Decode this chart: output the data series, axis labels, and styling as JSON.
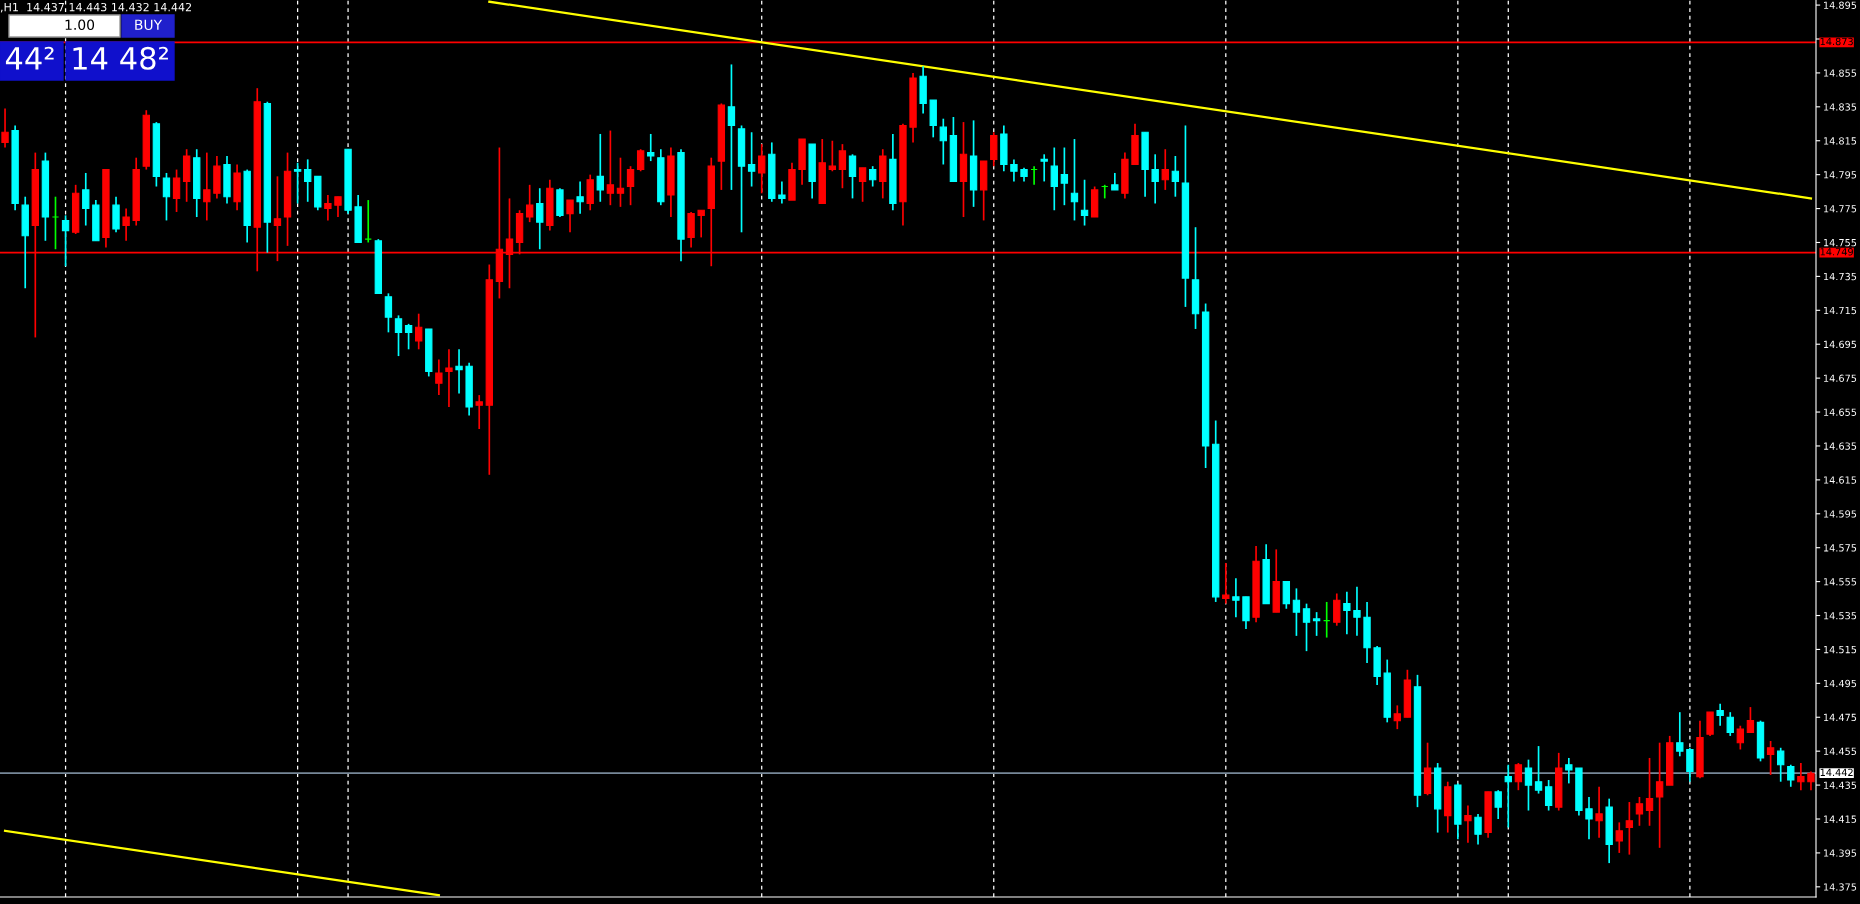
{
  "chart_data": {
    "type": "candlestick",
    "categories": [
      null,
      null,
      null,
      null,
      null,
      null,
      null,
      null,
      null,
      null,
      null,
      null,
      null,
      null,
      null,
      null,
      null,
      null,
      null,
      null,
      null,
      null,
      null,
      null,
      null,
      null,
      null,
      null,
      null,
      null,
      null,
      null,
      null,
      null,
      null,
      null,
      null,
      null,
      null,
      null,
      null,
      null,
      null,
      null,
      null,
      null,
      null,
      null,
      null,
      null,
      null,
      null,
      null,
      null,
      null,
      null,
      null,
      null,
      null,
      null,
      null,
      null,
      null,
      null,
      null,
      null,
      null,
      null,
      null,
      null,
      null,
      null,
      null,
      null,
      null,
      null,
      null,
      null,
      null,
      null,
      null,
      null,
      null,
      null,
      null,
      null,
      null,
      null,
      null,
      null,
      null,
      null,
      null,
      null,
      null,
      null,
      null,
      null,
      null,
      null,
      null,
      null,
      null,
      null,
      null,
      null,
      null,
      null,
      null,
      null,
      null,
      null,
      null,
      null,
      null,
      null,
      null,
      null,
      null,
      null,
      null,
      null,
      null,
      null,
      null,
      null,
      null,
      null,
      null,
      null,
      null,
      null,
      null,
      null,
      null,
      null,
      null,
      null,
      null,
      null,
      null,
      null,
      null,
      null,
      null,
      null,
      null,
      null,
      null,
      null,
      null,
      null,
      null,
      null,
      null,
      null,
      null,
      null,
      null,
      null,
      null,
      null,
      null,
      null,
      null,
      null,
      null,
      null,
      null,
      null,
      null,
      null,
      null,
      null,
      null,
      null,
      null,
      null,
      null,
      null
    ],
    "ohlc": [
      [
        14.814,
        14.834,
        14.811,
        14.82
      ],
      [
        14.821,
        14.824,
        14.774,
        14.778
      ],
      [
        14.777,
        14.782,
        14.728,
        14.759
      ],
      [
        14.765,
        14.808,
        14.699,
        14.798
      ],
      [
        14.803,
        14.808,
        14.756,
        14.77
      ],
      [
        14.77,
        14.782,
        14.751,
        14.77
      ],
      [
        14.768,
        14.771,
        14.741,
        14.762
      ],
      [
        14.761,
        14.789,
        14.76,
        14.784
      ],
      [
        14.786,
        14.796,
        14.765,
        14.775
      ],
      [
        14.777,
        14.78,
        14.756,
        14.756
      ],
      [
        14.758,
        14.798,
        14.752,
        14.798
      ],
      [
        14.777,
        14.782,
        14.761,
        14.763
      ],
      [
        14.765,
        14.775,
        14.756,
        14.77
      ],
      [
        14.768,
        14.805,
        14.765,
        14.798
      ],
      [
        14.8,
        14.833,
        14.798,
        14.83
      ],
      [
        14.825,
        14.826,
        14.788,
        14.794
      ],
      [
        14.793,
        14.796,
        14.768,
        14.782
      ],
      [
        14.781,
        14.798,
        14.773,
        14.793
      ],
      [
        14.791,
        14.81,
        14.779,
        14.806
      ],
      [
        14.805,
        14.81,
        14.77,
        14.781
      ],
      [
        14.779,
        14.808,
        14.768,
        14.786
      ],
      [
        14.784,
        14.806,
        14.781,
        14.8
      ],
      [
        14.801,
        14.806,
        14.778,
        14.782
      ],
      [
        14.779,
        14.801,
        14.774,
        14.796
      ],
      [
        14.797,
        14.798,
        14.755,
        14.765
      ],
      [
        14.764,
        14.846,
        14.738,
        14.838
      ],
      [
        14.837,
        14.838,
        14.749,
        14.767
      ],
      [
        14.765,
        14.794,
        14.744,
        14.769
      ],
      [
        14.77,
        14.808,
        14.753,
        14.797
      ],
      [
        14.798,
        14.802,
        14.778,
        14.797
      ],
      [
        14.798,
        14.804,
        14.779,
        14.791
      ],
      [
        14.794,
        14.794,
        14.774,
        14.776
      ],
      [
        14.775,
        14.783,
        14.768,
        14.778
      ],
      [
        14.777,
        14.782,
        14.77,
        14.782
      ],
      [
        14.81,
        14.81,
        14.772,
        14.774
      ],
      [
        14.776,
        14.783,
        14.755,
        14.755
      ],
      [
        14.757,
        14.78,
        14.755,
        14.757
      ],
      [
        14.756,
        14.757,
        14.725,
        14.725
      ],
      [
        14.723,
        14.725,
        14.702,
        14.711
      ],
      [
        14.71,
        14.712,
        14.688,
        14.702
      ],
      [
        14.706,
        14.707,
        14.692,
        14.702
      ],
      [
        14.697,
        14.713,
        14.692,
        14.705
      ],
      [
        14.704,
        14.704,
        14.676,
        14.679
      ],
      [
        14.672,
        14.686,
        14.665,
        14.678
      ],
      [
        14.679,
        14.692,
        14.658,
        14.681
      ],
      [
        14.682,
        14.692,
        14.666,
        14.68
      ],
      [
        14.682,
        14.684,
        14.653,
        14.658
      ],
      [
        14.659,
        14.665,
        14.645,
        14.661
      ],
      [
        14.659,
        14.742,
        14.618,
        14.733
      ],
      [
        14.732,
        14.811,
        14.722,
        14.751
      ],
      [
        14.748,
        14.781,
        14.728,
        14.757
      ],
      [
        14.755,
        14.774,
        14.748,
        14.772
      ],
      [
        14.77,
        14.789,
        14.767,
        14.777
      ],
      [
        14.778,
        14.787,
        14.751,
        14.767
      ],
      [
        14.765,
        14.792,
        14.762,
        14.787
      ],
      [
        14.786,
        14.787,
        14.77,
        14.771
      ],
      [
        14.772,
        14.78,
        14.761,
        14.78
      ],
      [
        14.782,
        14.791,
        14.772,
        14.779
      ],
      [
        14.778,
        14.795,
        14.774,
        14.792
      ],
      [
        14.794,
        14.819,
        14.779,
        14.786
      ],
      [
        14.784,
        14.821,
        14.777,
        14.789
      ],
      [
        14.784,
        14.805,
        14.776,
        14.787
      ],
      [
        14.788,
        14.8,
        14.777,
        14.798
      ],
      [
        14.798,
        14.81,
        14.797,
        14.809
      ],
      [
        14.808,
        14.819,
        14.803,
        14.806
      ],
      [
        14.805,
        14.81,
        14.777,
        14.779
      ],
      [
        14.783,
        14.811,
        14.77,
        14.806
      ],
      [
        14.808,
        14.81,
        14.744,
        14.757
      ],
      [
        14.758,
        14.773,
        14.752,
        14.772
      ],
      [
        14.771,
        14.774,
        14.758,
        14.774
      ],
      [
        14.775,
        14.805,
        14.741,
        14.8
      ],
      [
        14.803,
        14.837,
        14.786,
        14.836
      ],
      [
        14.835,
        14.86,
        14.786,
        14.824
      ],
      [
        14.822,
        14.824,
        14.761,
        14.8
      ],
      [
        14.801,
        14.82,
        14.788,
        14.797
      ],
      [
        14.796,
        14.813,
        14.784,
        14.806
      ],
      [
        14.807,
        14.814,
        14.779,
        14.781
      ],
      [
        14.783,
        14.791,
        14.778,
        14.781
      ],
      [
        14.78,
        14.802,
        14.78,
        14.798
      ],
      [
        14.798,
        14.816,
        14.789,
        14.816
      ],
      [
        14.813,
        14.813,
        14.781,
        14.791
      ],
      [
        14.778,
        14.816,
        14.778,
        14.802
      ],
      [
        14.798,
        14.815,
        14.797,
        14.8
      ],
      [
        14.798,
        14.813,
        14.787,
        14.809
      ],
      [
        14.806,
        14.807,
        14.781,
        14.794
      ],
      [
        14.791,
        14.799,
        14.779,
        14.799
      ],
      [
        14.798,
        14.8,
        14.788,
        14.792
      ],
      [
        14.791,
        14.81,
        14.781,
        14.806
      ],
      [
        14.804,
        14.819,
        14.774,
        14.778
      ],
      [
        14.779,
        14.825,
        14.765,
        14.824
      ],
      [
        14.823,
        14.855,
        14.814,
        14.852
      ],
      [
        14.853,
        14.859,
        14.831,
        14.837
      ],
      [
        14.839,
        14.839,
        14.817,
        14.824
      ],
      [
        14.823,
        14.828,
        14.801,
        14.815
      ],
      [
        14.818,
        14.829,
        14.791,
        14.791
      ],
      [
        14.791,
        14.826,
        14.77,
        14.807
      ],
      [
        14.806,
        14.827,
        14.776,
        14.786
      ],
      [
        14.786,
        14.803,
        14.768,
        14.803
      ],
      [
        14.804,
        14.82,
        14.8,
        14.818
      ],
      [
        14.819,
        14.824,
        14.797,
        14.801
      ],
      [
        14.801,
        14.804,
        14.791,
        14.797
      ],
      [
        14.798,
        14.799,
        14.791,
        14.794
      ],
      [
        14.798,
        14.8,
        14.789,
        14.798
      ],
      [
        14.804,
        14.807,
        14.791,
        14.803
      ],
      [
        14.8,
        14.811,
        14.774,
        14.788
      ],
      [
        14.795,
        14.811,
        14.777,
        14.79
      ],
      [
        14.784,
        14.816,
        14.768,
        14.779
      ],
      [
        14.774,
        14.792,
        14.765,
        14.771
      ],
      [
        14.77,
        14.788,
        14.77,
        14.786
      ],
      [
        14.788,
        14.789,
        14.781,
        14.788
      ],
      [
        14.789,
        14.796,
        14.786,
        14.786
      ],
      [
        14.784,
        14.808,
        14.781,
        14.804
      ],
      [
        14.801,
        14.825,
        14.801,
        14.818
      ],
      [
        14.82,
        14.82,
        14.782,
        14.798
      ],
      [
        14.798,
        14.807,
        14.778,
        14.791
      ],
      [
        14.792,
        14.81,
        14.786,
        14.798
      ],
      [
        14.797,
        14.806,
        14.782,
        14.791
      ],
      [
        14.79,
        14.824,
        14.717,
        14.734
      ],
      [
        14.733,
        14.764,
        14.704,
        14.713
      ],
      [
        14.714,
        14.719,
        14.622,
        14.635
      ],
      [
        14.636,
        14.65,
        14.543,
        14.546
      ],
      [
        14.545,
        14.566,
        14.542,
        14.547
      ],
      [
        14.546,
        14.557,
        14.534,
        14.544
      ],
      [
        14.546,
        14.546,
        14.527,
        14.532
      ],
      [
        14.534,
        14.576,
        14.531,
        14.567
      ],
      [
        14.568,
        14.577,
        14.542,
        14.542
      ],
      [
        14.537,
        14.574,
        14.537,
        14.555
      ],
      [
        14.555,
        14.555,
        14.539,
        14.542
      ],
      [
        14.544,
        14.551,
        14.523,
        14.537
      ],
      [
        14.539,
        14.542,
        14.514,
        14.531
      ],
      [
        14.533,
        14.537,
        14.523,
        14.532
      ],
      [
        14.532,
        14.543,
        14.522,
        14.532
      ],
      [
        14.531,
        14.548,
        14.529,
        14.544
      ],
      [
        14.542,
        14.549,
        14.524,
        14.538
      ],
      [
        14.538,
        14.552,
        14.523,
        14.534
      ],
      [
        14.534,
        14.543,
        14.507,
        14.516
      ],
      [
        14.516,
        14.517,
        14.494,
        14.499
      ],
      [
        14.501,
        14.509,
        14.472,
        14.475
      ],
      [
        14.473,
        14.482,
        14.468,
        14.477
      ],
      [
        14.475,
        14.503,
        14.475,
        14.497
      ],
      [
        14.493,
        14.5,
        14.422,
        14.429
      ],
      [
        14.43,
        14.46,
        14.429,
        14.445
      ],
      [
        14.445,
        14.448,
        14.407,
        14.421
      ],
      [
        14.417,
        14.437,
        14.407,
        14.434
      ],
      [
        14.435,
        14.436,
        14.403,
        14.412
      ],
      [
        14.414,
        14.423,
        14.401,
        14.417
      ],
      [
        14.416,
        14.418,
        14.4,
        14.406
      ],
      [
        14.407,
        14.431,
        14.404,
        14.431
      ],
      [
        14.431,
        14.432,
        14.415,
        14.422
      ],
      [
        14.44,
        14.447,
        14.41,
        14.437
      ],
      [
        14.437,
        14.448,
        14.432,
        14.447
      ],
      [
        14.445,
        14.45,
        14.42,
        14.435
      ],
      [
        14.437,
        14.458,
        14.43,
        14.432
      ],
      [
        14.434,
        14.438,
        14.42,
        14.423
      ],
      [
        14.422,
        14.454,
        14.42,
        14.445
      ],
      [
        14.447,
        14.451,
        14.436,
        14.444
      ],
      [
        14.445,
        14.445,
        14.417,
        14.42
      ],
      [
        14.421,
        14.428,
        14.403,
        14.415
      ],
      [
        14.414,
        14.434,
        14.404,
        14.418
      ],
      [
        14.422,
        14.427,
        14.389,
        14.4
      ],
      [
        14.402,
        14.413,
        14.395,
        14.408
      ],
      [
        14.41,
        14.425,
        14.394,
        14.414
      ],
      [
        14.418,
        14.428,
        14.411,
        14.424
      ],
      [
        14.42,
        14.451,
        14.411,
        14.427
      ],
      [
        14.428,
        14.46,
        14.398,
        14.437
      ],
      [
        14.435,
        14.464,
        14.435,
        14.46
      ],
      [
        14.46,
        14.478,
        14.452,
        14.455
      ],
      [
        14.456,
        14.457,
        14.437,
        14.443
      ],
      [
        14.44,
        14.473,
        14.439,
        14.463
      ],
      [
        14.465,
        14.478,
        14.464,
        14.478
      ],
      [
        14.479,
        14.483,
        14.47,
        14.476
      ],
      [
        14.475,
        14.478,
        14.464,
        14.466
      ],
      [
        14.46,
        14.47,
        14.456,
        14.468
      ],
      [
        14.466,
        14.481,
        14.466,
        14.473
      ],
      [
        14.472,
        14.473,
        14.449,
        14.451
      ],
      [
        14.453,
        14.461,
        14.441,
        14.457
      ],
      [
        14.455,
        14.457,
        14.437,
        14.447
      ],
      [
        14.446,
        14.447,
        14.434,
        14.438
      ],
      [
        14.437,
        14.448,
        14.432,
        14.44
      ],
      [
        14.437,
        14.443,
        14.432,
        14.442
      ]
    ],
    "colors": [
      "#ff0000",
      "#00ffff",
      "#00ffff",
      "#ff0000",
      "#00ffff",
      "#00ff00",
      "#00ffff",
      "#ff0000",
      "#00ffff",
      "#00ffff",
      "#ff0000",
      "#00ffff",
      "#ff0000",
      "#ff0000",
      "#ff0000",
      "#00ffff",
      "#00ffff",
      "#ff0000",
      "#ff0000",
      "#00ffff",
      "#ff0000",
      "#ff0000",
      "#00ffff",
      "#ff0000",
      "#00ffff",
      "#ff0000",
      "#00ffff",
      "#ff0000",
      "#ff0000",
      "#00ffff",
      "#00ffff",
      "#00ffff",
      "#ff0000",
      "#ff0000",
      "#00ffff",
      "#00ffff",
      "#00ff00",
      "#00ffff",
      "#00ffff",
      "#00ffff",
      "#00ffff",
      "#ff0000",
      "#00ffff",
      "#ff0000",
      "#ff0000",
      "#00ffff",
      "#00ffff",
      "#ff0000",
      "#ff0000",
      "#ff0000",
      "#ff0000",
      "#ff0000",
      "#ff0000",
      "#00ffff",
      "#ff0000",
      "#00ffff",
      "#ff0000",
      "#00ffff",
      "#ff0000",
      "#00ffff",
      "#ff0000",
      "#ff0000",
      "#ff0000",
      "#ff0000",
      "#00ffff",
      "#00ffff",
      "#ff0000",
      "#00ffff",
      "#ff0000",
      "#ff0000",
      "#ff0000",
      "#ff0000",
      "#00ffff",
      "#00ffff",
      "#00ffff",
      "#ff0000",
      "#00ffff",
      "#00ffff",
      "#ff0000",
      "#ff0000",
      "#00ffff",
      "#ff0000",
      "#ff0000",
      "#ff0000",
      "#00ffff",
      "#ff0000",
      "#00ffff",
      "#ff0000",
      "#00ffff",
      "#ff0000",
      "#ff0000",
      "#00ffff",
      "#00ffff",
      "#00ffff",
      "#00ffff",
      "#ff0000",
      "#00ffff",
      "#ff0000",
      "#ff0000",
      "#00ffff",
      "#00ffff",
      "#00ffff",
      "#00ff00",
      "#00ffff",
      "#00ffff",
      "#00ffff",
      "#00ffff",
      "#00ffff",
      "#ff0000",
      "#00ff00",
      "#00ffff",
      "#ff0000",
      "#ff0000",
      "#00ffff",
      "#00ffff",
      "#ff0000",
      "#00ffff",
      "#00ffff",
      "#00ffff",
      "#00ffff",
      "#00ffff",
      "#ff0000",
      "#00ffff",
      "#00ffff",
      "#ff0000",
      "#00ffff",
      "#ff0000",
      "#00ffff",
      "#00ffff",
      "#00ffff",
      "#00ffff",
      "#00ff00",
      "#ff0000",
      "#00ffff",
      "#00ffff",
      "#00ffff",
      "#00ffff",
      "#00ffff",
      "#ff0000",
      "#ff0000",
      "#00ffff",
      "#ff0000",
      "#00ffff",
      "#ff0000",
      "#00ffff",
      "#ff0000",
      "#00ffff",
      "#ff0000",
      "#00ffff",
      "#00ffff",
      "#ff0000",
      "#00ffff",
      "#00ffff",
      "#00ffff",
      "#ff0000",
      "#00ffff",
      "#00ffff",
      "#00ffff",
      "#ff0000",
      "#00ffff",
      "#ff0000",
      "#ff0000",
      "#ff0000",
      "#ff0000",
      "#ff0000",
      "#ff0000",
      "#00ffff",
      "#00ffff",
      "#ff0000",
      "#ff0000",
      "#00ffff",
      "#00ffff",
      "#ff0000",
      "#ff0000",
      "#00ffff",
      "#ff0000",
      "#00ffff",
      "#00ffff",
      "#ff0000",
      "#ff0000"
    ],
    "series": [
      {
        "type": "line",
        "color": "#ffff00",
        "values": [
          null,
          null,
          null,
          null,
          null,
          null,
          null,
          null,
          null,
          null,
          null,
          null,
          null,
          null,
          null,
          null,
          null,
          null,
          null,
          null,
          null,
          null,
          null,
          null,
          null,
          null,
          null,
          null,
          null,
          null,
          null,
          null,
          null,
          null,
          null,
          null,
          null,
          null,
          null,
          null,
          null,
          null,
          null,
          null,
          null,
          null,
          null,
          null,
          14.897,
          null,
          null,
          null,
          null,
          null,
          null,
          null,
          null,
          null,
          null,
          null,
          null,
          null,
          null,
          null,
          null,
          null,
          null,
          null,
          null,
          null,
          null,
          null,
          null,
          null,
          null,
          null,
          null,
          null,
          null,
          null,
          null,
          null,
          null,
          null,
          null,
          null,
          null,
          null,
          null,
          null,
          null,
          null,
          null,
          null,
          null,
          null,
          null,
          null,
          null,
          null,
          null,
          null,
          null,
          null,
          null,
          null,
          null,
          null,
          null,
          null,
          null,
          null,
          null,
          null,
          null,
          null,
          null,
          null,
          null,
          null,
          null,
          null,
          null,
          null,
          null,
          null,
          null,
          null,
          null,
          null,
          null,
          null,
          null,
          null,
          null,
          null,
          null,
          null,
          null,
          null,
          null,
          null,
          null,
          null,
          null,
          null,
          null,
          null,
          null,
          null,
          null,
          null,
          null,
          null,
          null,
          null,
          null,
          null,
          null,
          null,
          null,
          null,
          null,
          null,
          null,
          null,
          null,
          null,
          null,
          null,
          null,
          null,
          null,
          null,
          null,
          null,
          null,
          null,
          null,
          14.781
        ]
      },
      {
        "type": "line",
        "color": "#ffff00",
        "values": [
          14.408,
          null,
          null,
          null,
          null,
          null,
          null,
          null,
          null,
          null,
          null,
          null,
          null,
          null,
          null,
          null,
          null,
          null,
          null,
          null,
          null,
          null,
          null,
          null,
          null,
          null,
          null,
          null,
          null,
          null,
          null,
          null,
          null,
          null,
          null,
          null,
          null,
          null,
          null,
          null,
          null,
          null,
          null,
          14.37,
          null,
          null,
          null,
          null,
          null,
          null,
          null,
          null,
          null,
          null,
          null,
          null,
          null,
          null,
          null,
          null,
          null,
          null,
          null,
          null,
          null,
          null,
          null,
          null,
          null,
          null,
          null,
          null,
          null,
          null,
          null,
          null,
          null,
          null,
          null,
          null,
          null,
          null,
          null,
          null,
          null,
          null,
          null,
          null,
          null,
          null,
          null,
          null,
          null,
          null,
          null,
          null,
          null,
          null,
          null,
          null,
          null,
          null,
          null,
          null,
          null,
          null,
          null,
          null,
          null,
          null,
          null,
          null,
          null,
          null,
          null,
          null,
          null,
          null,
          null,
          null,
          null,
          null,
          null,
          null,
          null,
          null,
          null,
          null,
          null,
          null,
          null,
          null,
          null,
          null,
          null,
          null,
          null,
          null,
          null,
          null,
          null,
          null,
          null,
          null,
          null,
          null,
          null,
          null,
          null,
          null,
          null,
          null,
          null,
          null,
          null,
          null,
          null,
          null,
          null,
          null,
          null,
          null,
          null,
          null,
          null,
          null,
          null,
          null,
          null,
          null,
          null,
          null,
          null,
          null,
          null,
          null,
          null,
          null,
          null,
          null
        ]
      }
    ],
    "ylim": [
      14.369,
      14.898
    ],
    "yticks": [
      14.375,
      14.395,
      14.415,
      14.435,
      14.455,
      14.475,
      14.495,
      14.515,
      14.535,
      14.555,
      14.575,
      14.595,
      14.615,
      14.635,
      14.655,
      14.675,
      14.695,
      14.715,
      14.735,
      14.755,
      14.775,
      14.795,
      14.815,
      14.835,
      14.855,
      {
        "value": 14.875,
        "label": null
      },
      14.895
    ],
    "tick_labels": "y",
    "ref_lines": [
      {
        "axis": "y",
        "value": 14.873,
        "label": "14.873",
        "color": "#ff0000"
      },
      {
        "axis": "y",
        "value": 14.749,
        "label": "14.749",
        "color": "#ff0000"
      },
      {
        "axis": "y",
        "value": 14.442,
        "label": "14.442",
        "color": "#778899"
      }
    ],
    "annotations": [
      ",H1  14.437 14.443 14.432 14.442",
      "1.00",
      "BUY",
      "44²",
      "14 48²"
    ]
  }
}
